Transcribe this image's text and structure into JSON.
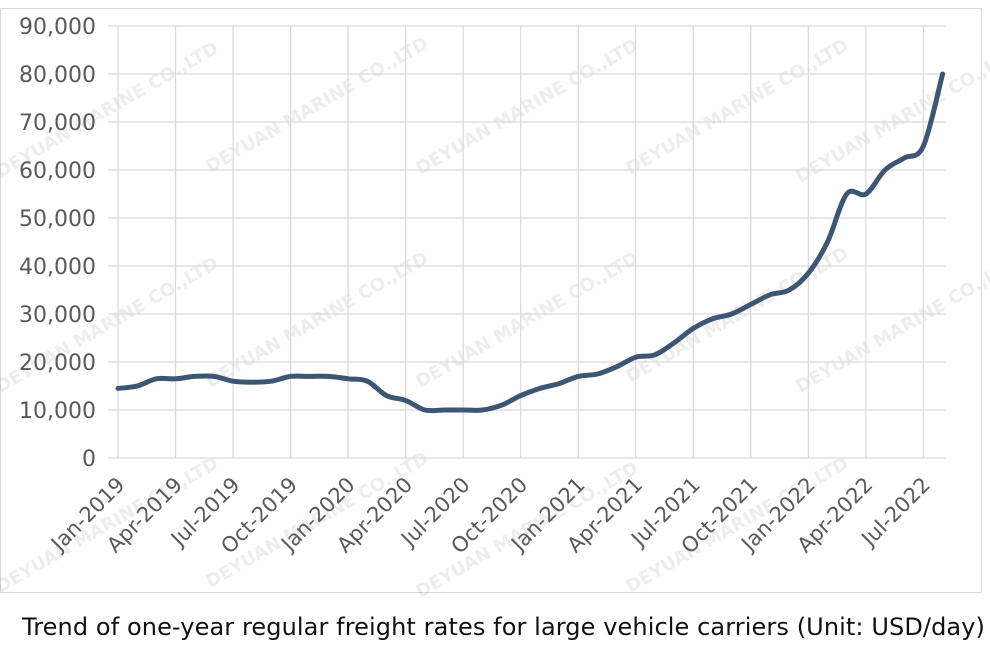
{
  "caption": "Trend of one-year regular freight rates for large vehicle carriers (Unit: USD/day)",
  "watermark": "DEYUAN MARINE CO.,LTD",
  "colors": {
    "line": "#3c5673",
    "grid": "#d9d9d9",
    "tick_text": "#595959"
  },
  "chart_data": {
    "type": "line",
    "title": "",
    "xlabel": "",
    "ylabel": "",
    "ylim": [
      0,
      90000
    ],
    "yticks": [
      0,
      10000,
      20000,
      30000,
      40000,
      50000,
      60000,
      70000,
      80000,
      90000
    ],
    "ytick_labels": [
      "0",
      "10,000",
      "20,000",
      "30,000",
      "40,000",
      "50,000",
      "60,000",
      "70,000",
      "80,000",
      "90,000"
    ],
    "xticks": [
      "Jan-2019",
      "Apr-2019",
      "Jul-2019",
      "Oct-2019",
      "Jan-2020",
      "Apr-2020",
      "Jul-2020",
      "Oct-2020",
      "Jan-2021",
      "Apr-2021",
      "Jul-2021",
      "Oct-2021",
      "Jan-2022",
      "Apr-2022",
      "Jul-2022"
    ],
    "grid": true,
    "legend": "none",
    "series": [
      {
        "x": [
          "Jan-2019",
          "Feb-2019",
          "Mar-2019",
          "Apr-2019",
          "May-2019",
          "Jun-2019",
          "Jul-2019",
          "Aug-2019",
          "Sep-2019",
          "Oct-2019",
          "Nov-2019",
          "Dec-2019",
          "Jan-2020",
          "Feb-2020",
          "Mar-2020",
          "Apr-2020",
          "May-2020",
          "Jun-2020",
          "Jul-2020",
          "Aug-2020",
          "Sep-2020",
          "Oct-2020",
          "Nov-2020",
          "Dec-2020",
          "Jan-2021",
          "Feb-2021",
          "Mar-2021",
          "Apr-2021",
          "May-2021",
          "Jun-2021",
          "Jul-2021",
          "Aug-2021",
          "Sep-2021",
          "Oct-2021",
          "Nov-2021",
          "Dec-2021",
          "Jan-2022",
          "Feb-2022",
          "Mar-2022",
          "Apr-2022",
          "May-2022",
          "Jun-2022",
          "Jul-2022",
          "Aug-2022"
        ],
        "values": [
          14500,
          15000,
          16500,
          16500,
          17000,
          17000,
          16000,
          15800,
          16000,
          17000,
          17000,
          17000,
          16500,
          16000,
          13000,
          12000,
          10000,
          10000,
          10000,
          10000,
          11000,
          13000,
          14500,
          15500,
          17000,
          17500,
          19000,
          21000,
          21500,
          24000,
          27000,
          29000,
          30000,
          32000,
          34000,
          35000,
          38500,
          45000,
          55000,
          55000,
          60000,
          62500,
          65000,
          80000
        ]
      }
    ]
  }
}
